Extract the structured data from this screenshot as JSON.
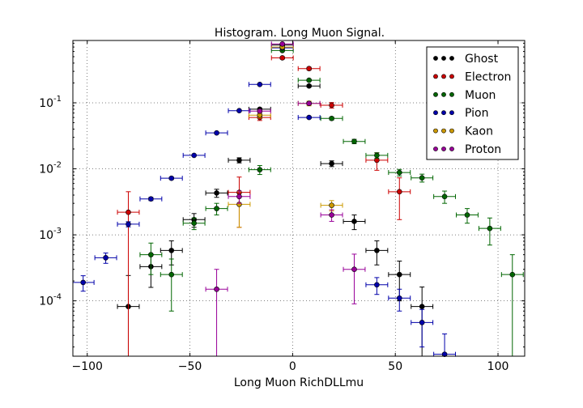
{
  "chart_data": {
    "type": "scatter",
    "title": "Histogram. Long Muon Signal.",
    "xlabel": "Long Muon RichDLLmu",
    "ylabel": "",
    "xlim": [
      -107,
      113
    ],
    "ylim": [
      1.45e-05,
      0.88
    ],
    "yscale": "log",
    "grid": true,
    "legend_position": "top-right",
    "x_ticks": [
      {
        "value": -100,
        "label": "−100"
      },
      {
        "value": -50,
        "label": "−50"
      },
      {
        "value": 0,
        "label": "0"
      },
      {
        "value": 50,
        "label": "50"
      },
      {
        "value": 100,
        "label": "100"
      }
    ],
    "y_ticks": [
      {
        "value": 0.0001,
        "base": "10",
        "exp": "-4"
      },
      {
        "value": 0.001,
        "base": "10",
        "exp": "-3"
      },
      {
        "value": 0.01,
        "base": "10",
        "exp": "-2"
      },
      {
        "value": 0.1,
        "base": "10",
        "exp": "-1"
      }
    ],
    "x_half_width": 5.3,
    "series": [
      {
        "name": "Ghost",
        "color": "#000000",
        "points": [
          [
            -80,
            8.2e-05,
            8.2e-05,
            0.00016
          ],
          [
            -69,
            0.00033,
            0.00017,
            0.00017
          ],
          [
            -59,
            0.00058,
            0.00023,
            0.00023
          ],
          [
            -48,
            0.0017,
            0.0004,
            0.0004
          ],
          [
            -37,
            0.0043,
            0.0006,
            0.0006
          ],
          [
            -26,
            0.0135,
            0.0012,
            0.0012
          ],
          [
            -16,
            0.08,
            0.003,
            0.003
          ],
          [
            -5,
            0.75,
            0.012,
            0.012
          ],
          [
            8,
            0.18,
            0.006,
            0.006
          ],
          [
            19,
            0.012,
            0.0012,
            0.0012
          ],
          [
            30,
            0.0016,
            0.0004,
            0.0004
          ],
          [
            41,
            0.00058,
            0.00023,
            0.00023
          ],
          [
            52,
            0.00025,
            0.00015,
            0.00015
          ],
          [
            63,
            8.2e-05,
            8.2e-05,
            8e-05
          ]
        ]
      },
      {
        "name": "Electron",
        "color": "#cc0000",
        "points": [
          [
            -80,
            0.0022,
            0.0022,
            0.0023
          ],
          [
            -26,
            0.0044,
            0.0031,
            0.0031
          ],
          [
            -16,
            0.06,
            0.006,
            0.006
          ],
          [
            -5,
            0.48,
            0.02,
            0.02
          ],
          [
            8,
            0.33,
            0.016,
            0.016
          ],
          [
            19,
            0.092,
            0.009,
            0.009
          ],
          [
            41,
            0.0135,
            0.004,
            0.004
          ],
          [
            52,
            0.0045,
            0.0028,
            0.0028
          ]
        ]
      },
      {
        "name": "Muon",
        "color": "#006600",
        "points": [
          [
            -69,
            0.0005,
            0.00025,
            0.00025
          ],
          [
            -59,
            0.00025,
            0.00018,
            0.00018
          ],
          [
            -48,
            0.0015,
            0.0003,
            0.0003
          ],
          [
            -37,
            0.0025,
            0.0005,
            0.0005
          ],
          [
            -16,
            0.0097,
            0.0015,
            0.0015
          ],
          [
            -5,
            0.62,
            0.012,
            0.012
          ],
          [
            8,
            0.22,
            0.006,
            0.006
          ],
          [
            19,
            0.058,
            0.003,
            0.003
          ],
          [
            30,
            0.026,
            0.002,
            0.002
          ],
          [
            41,
            0.016,
            0.0015,
            0.0015
          ],
          [
            52,
            0.0088,
            0.001,
            0.001
          ],
          [
            63,
            0.0073,
            0.001,
            0.001
          ],
          [
            74,
            0.0038,
            0.0008,
            0.0008
          ],
          [
            85,
            0.002,
            0.0005,
            0.0005
          ],
          [
            96,
            0.00125,
            0.00055,
            0.00055
          ],
          [
            107,
            0.00025,
            0.00025,
            0.00025
          ]
        ]
      },
      {
        "name": "Pion",
        "color": "#0000aa",
        "points": [
          [
            -102,
            0.00019,
            5e-05,
            5e-05
          ],
          [
            -91,
            0.00045,
            8e-05,
            8e-05
          ],
          [
            -80,
            0.00145,
            0.00013,
            0.00013
          ],
          [
            -69,
            0.0035,
            0.0002,
            0.0002
          ],
          [
            -59,
            0.0072,
            0.0003,
            0.0003
          ],
          [
            -48,
            0.016,
            0.0005,
            0.0005
          ],
          [
            -37,
            0.035,
            0.001,
            0.001
          ],
          [
            -26,
            0.076,
            0.002,
            0.002
          ],
          [
            -16,
            0.19,
            0.003,
            0.003
          ],
          [
            -5,
            0.68,
            0.01,
            0.01
          ],
          [
            8,
            0.06,
            0.002,
            0.002
          ],
          [
            41,
            0.000175,
            5e-05,
            5e-05
          ],
          [
            52,
            0.00011,
            4e-05,
            4e-05
          ],
          [
            63,
            4.7e-05,
            2.7e-05,
            2.7e-05
          ],
          [
            74,
            1.55e-05,
            1.55e-05,
            1.6e-05
          ]
        ]
      },
      {
        "name": "Kaon",
        "color": "#cc9900",
        "points": [
          [
            -26,
            0.0029,
            0.0016,
            0.0016
          ],
          [
            -16,
            0.065,
            0.006,
            0.006
          ],
          [
            -5,
            0.7,
            0.02,
            0.02
          ],
          [
            8,
            0.098,
            0.008,
            0.008
          ],
          [
            19,
            0.0028,
            0.0005,
            0.0005
          ]
        ]
      },
      {
        "name": "Proton",
        "color": "#990099",
        "points": [
          [
            -37,
            0.00015,
            0.00015,
            0.00015
          ],
          [
            -26,
            0.0038,
            0.0008,
            0.0008
          ],
          [
            -16,
            0.075,
            0.004,
            0.004
          ],
          [
            -5,
            0.78,
            0.015,
            0.015
          ],
          [
            8,
            0.098,
            0.005,
            0.005
          ],
          [
            19,
            0.002,
            0.0004,
            0.0004
          ],
          [
            30,
            0.0003,
            0.00021,
            0.00021
          ]
        ]
      }
    ]
  }
}
